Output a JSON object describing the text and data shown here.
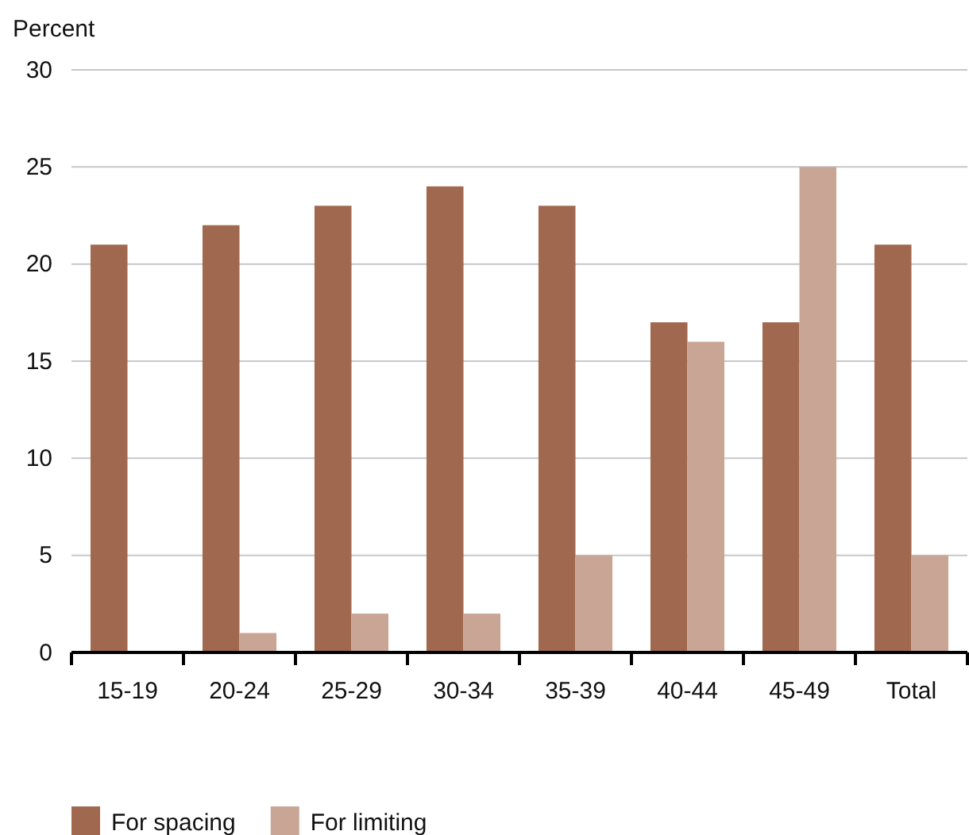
{
  "chart_data": {
    "type": "bar",
    "ylabel": "Percent",
    "categories": [
      "15-19",
      "20-24",
      "25-29",
      "30-34",
      "35-39",
      "40-44",
      "45-49",
      "Total"
    ],
    "series": [
      {
        "name": "For spacing",
        "color": "#a0694f",
        "values": [
          21,
          22,
          23,
          24,
          23,
          17,
          17,
          21
        ]
      },
      {
        "name": "For limiting",
        "color": "#c9a595",
        "values": [
          0,
          1,
          2,
          2,
          5,
          16,
          25,
          5
        ]
      }
    ],
    "ylim": [
      0,
      30
    ],
    "yticks": [
      0,
      5,
      10,
      15,
      20,
      25,
      30
    ],
    "grid": "y",
    "legend": "bottom"
  }
}
